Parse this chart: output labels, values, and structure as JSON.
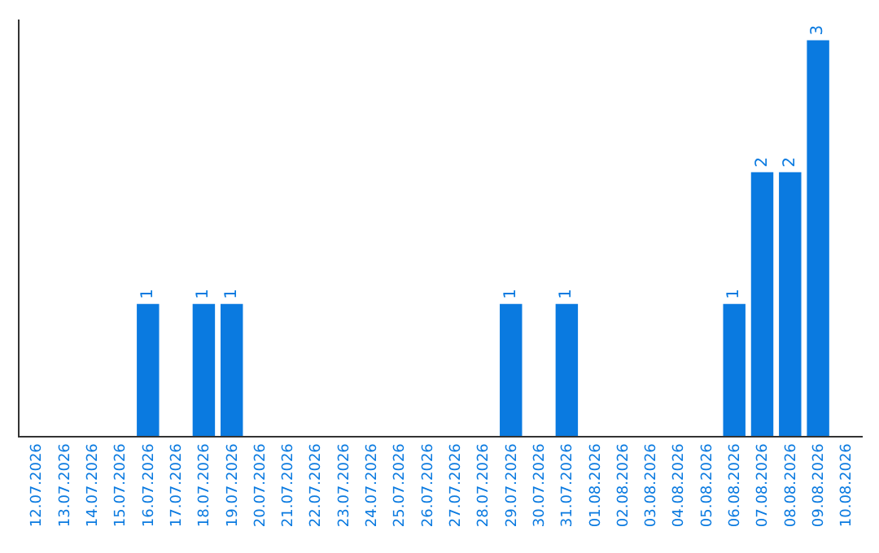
{
  "chart_data": {
    "type": "bar",
    "categories": [
      "12.07.2026",
      "13.07.2026",
      "14.07.2026",
      "15.07.2026",
      "16.07.2026",
      "17.07.2026",
      "18.07.2026",
      "19.07.2026",
      "20.07.2026",
      "21.07.2026",
      "22.07.2026",
      "23.07.2026",
      "24.07.2026",
      "25.07.2026",
      "26.07.2026",
      "27.07.2026",
      "28.07.2026",
      "29.07.2026",
      "30.07.2026",
      "31.07.2026",
      "01.08.2026",
      "02.08.2026",
      "03.08.2026",
      "04.08.2026",
      "05.08.2026",
      "06.08.2026",
      "07.08.2026",
      "08.08.2026",
      "09.08.2026",
      "10.08.2026"
    ],
    "values": [
      0,
      0,
      0,
      0,
      1,
      0,
      1,
      1,
      0,
      0,
      0,
      0,
      0,
      0,
      0,
      0,
      0,
      1,
      0,
      1,
      0,
      0,
      0,
      0,
      0,
      1,
      2,
      2,
      3,
      0
    ],
    "value_labels": [
      null,
      null,
      null,
      null,
      "1",
      null,
      "1",
      "1",
      null,
      null,
      null,
      null,
      null,
      null,
      null,
      null,
      null,
      "1",
      null,
      "1",
      null,
      null,
      null,
      null,
      null,
      "1",
      "2",
      "2",
      "3",
      null
    ],
    "color": "#0a7ae0",
    "tick_labels": "x",
    "legend": false
  }
}
